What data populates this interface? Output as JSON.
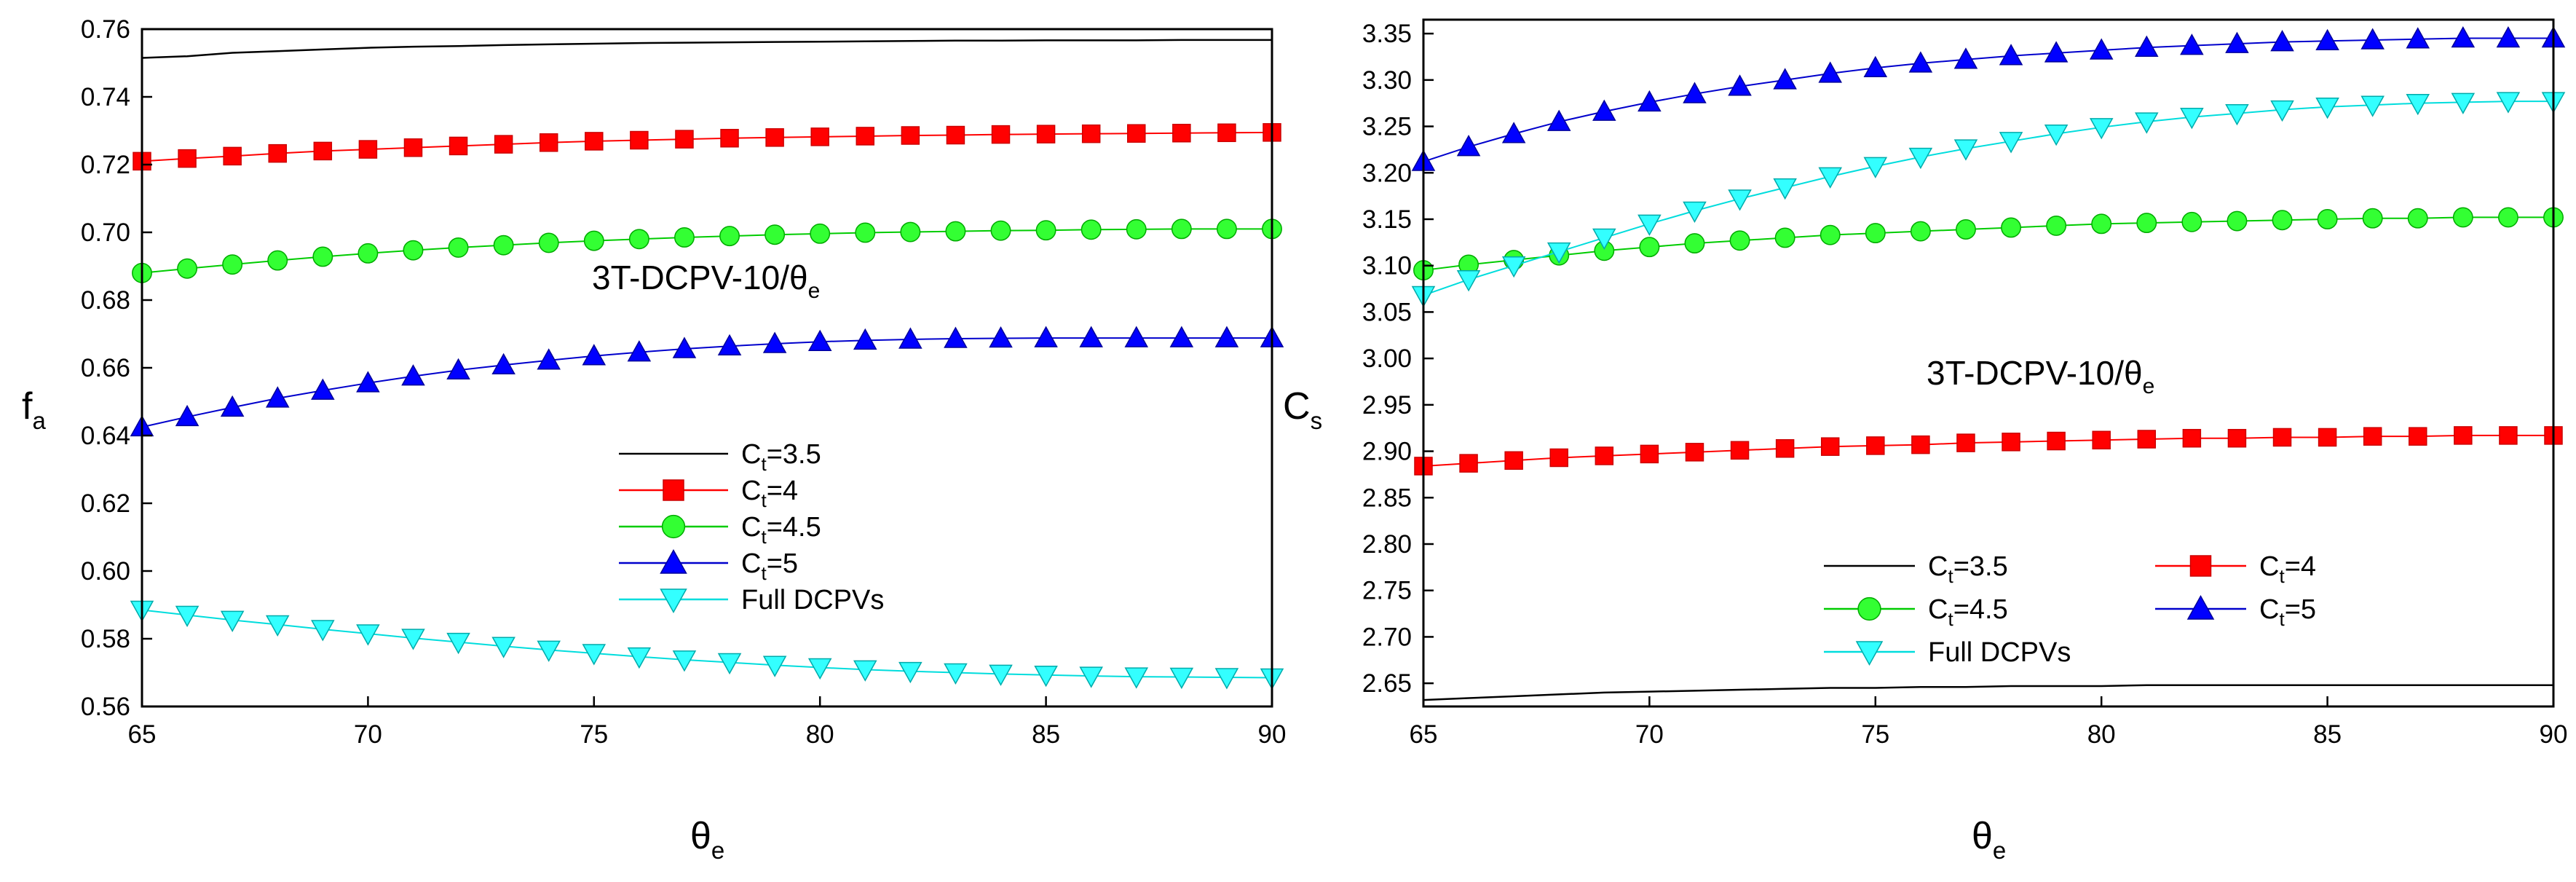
{
  "chart_data": [
    {
      "type": "line",
      "x": [
        65,
        66,
        67,
        68,
        69,
        70,
        71,
        72,
        73,
        74,
        75,
        76,
        77,
        78,
        79,
        80,
        81,
        82,
        83,
        84,
        85,
        86,
        87,
        88,
        89,
        90
      ],
      "xlim": [
        65,
        90
      ],
      "xticks": [
        "65",
        "70",
        "75",
        "80",
        "85",
        "90"
      ],
      "ylim": [
        0.56,
        0.76
      ],
      "yticks": [
        "0.56",
        "0.58",
        "0.60",
        "0.62",
        "0.64",
        "0.66",
        "0.68",
        "0.70",
        "0.72",
        "0.74",
        "0.76"
      ],
      "xlabel": {
        "main": "θ",
        "sub": "e"
      },
      "ylabel": {
        "main": "f",
        "sub": "a"
      },
      "annotation": {
        "main": "3T-DCPV-10/θ",
        "sub": "e"
      },
      "legend_position": "center-right",
      "series": [
        {
          "name": "Ct=3.5",
          "label_main": "C",
          "label_sub": "t",
          "label_rest": "=3.5",
          "color": "#000000",
          "marker": "none",
          "fill": "",
          "edge": "",
          "values": [
            0.7515,
            0.752,
            0.753,
            0.7535,
            0.754,
            0.7545,
            0.7548,
            0.755,
            0.7553,
            0.7555,
            0.7557,
            0.7559,
            0.756,
            0.7561,
            0.7562,
            0.7563,
            0.7564,
            0.7565,
            0.7566,
            0.7566,
            0.7567,
            0.7567,
            0.7567,
            0.7568,
            0.7568,
            0.7568
          ]
        },
        {
          "name": "Ct=4",
          "label_main": "C",
          "label_sub": "t",
          "label_rest": "=4",
          "color": "#ff0000",
          "marker": "square",
          "fill": "#ff0000",
          "edge": "#cc0000",
          "values": [
            0.721,
            0.7218,
            0.7225,
            0.7233,
            0.724,
            0.7245,
            0.725,
            0.7255,
            0.726,
            0.7265,
            0.7269,
            0.7272,
            0.7275,
            0.7278,
            0.728,
            0.7282,
            0.7284,
            0.7286,
            0.7287,
            0.7289,
            0.729,
            0.7291,
            0.7292,
            0.7293,
            0.7294,
            0.7295
          ]
        },
        {
          "name": "Ct=4.5",
          "label_main": "C",
          "label_sub": "t",
          "label_rest": "=4.5",
          "color": "#00cc00",
          "marker": "circle",
          "fill": "#33ff33",
          "edge": "#00aa00",
          "values": [
            0.688,
            0.6893,
            0.6905,
            0.6917,
            0.6928,
            0.6938,
            0.6947,
            0.6955,
            0.6962,
            0.6969,
            0.6975,
            0.698,
            0.6985,
            0.6989,
            0.6993,
            0.6996,
            0.6999,
            0.7001,
            0.7003,
            0.7005,
            0.7006,
            0.7008,
            0.7009,
            0.701,
            0.701,
            0.701
          ]
        },
        {
          "name": "Ct=5",
          "label_main": "C",
          "label_sub": "t",
          "label_rest": "=5",
          "color": "#0000cc",
          "marker": "triangle-up",
          "fill": "#0000ff",
          "edge": "#000099",
          "values": [
            0.6425,
            0.6455,
            0.6483,
            0.651,
            0.6533,
            0.6555,
            0.6575,
            0.6593,
            0.6608,
            0.6622,
            0.6635,
            0.6646,
            0.6656,
            0.6664,
            0.6671,
            0.6677,
            0.6681,
            0.6684,
            0.6686,
            0.6687,
            0.6688,
            0.6688,
            0.6688,
            0.6688,
            0.6688,
            0.6688
          ]
        },
        {
          "name": "Full DCPVs",
          "label_main": "Full DCPVs",
          "label_sub": "",
          "label_rest": "",
          "color": "#00dddd",
          "marker": "triangle-down",
          "fill": "#33ffff",
          "edge": "#00aaaa",
          "values": [
            0.5885,
            0.587,
            0.5855,
            0.5842,
            0.5828,
            0.5815,
            0.5802,
            0.579,
            0.5778,
            0.5767,
            0.5757,
            0.5747,
            0.5738,
            0.573,
            0.5722,
            0.5715,
            0.5709,
            0.5704,
            0.57,
            0.5696,
            0.5693,
            0.569,
            0.5688,
            0.5687,
            0.5686,
            0.5685
          ]
        }
      ]
    },
    {
      "type": "line",
      "x": [
        65,
        66,
        67,
        68,
        69,
        70,
        71,
        72,
        73,
        74,
        75,
        76,
        77,
        78,
        79,
        80,
        81,
        82,
        83,
        84,
        85,
        86,
        87,
        88,
        89,
        90
      ],
      "xlim": [
        65,
        90
      ],
      "xticks": [
        "65",
        "70",
        "75",
        "80",
        "85",
        "90"
      ],
      "ylim": [
        2.625,
        3.365
      ],
      "yticks": [
        "2.65",
        "2.70",
        "2.75",
        "2.80",
        "2.85",
        "2.90",
        "2.95",
        "3.00",
        "3.05",
        "3.10",
        "3.15",
        "3.20",
        "3.25",
        "3.30",
        "3.35"
      ],
      "xlabel": {
        "main": "θ",
        "sub": "e"
      },
      "ylabel": {
        "main": "C",
        "sub": "s"
      },
      "annotation": {
        "main": "3T-DCPV-10/θ",
        "sub": "e"
      },
      "legend_position": "bottom-center",
      "series": [
        {
          "name": "Ct=3.5",
          "label_main": "C",
          "label_sub": "t",
          "label_rest": "=3.5",
          "color": "#000000",
          "marker": "none",
          "fill": "",
          "edge": "",
          "values": [
            2.632,
            2.634,
            2.636,
            2.638,
            2.64,
            2.641,
            2.642,
            2.643,
            2.644,
            2.645,
            2.645,
            2.646,
            2.646,
            2.647,
            2.647,
            2.647,
            2.648,
            2.648,
            2.648,
            2.648,
            2.648,
            2.648,
            2.648,
            2.648,
            2.648,
            2.648
          ]
        },
        {
          "name": "Ct=4",
          "label_main": "C",
          "label_sub": "t",
          "label_rest": "=4",
          "color": "#ff0000",
          "marker": "square",
          "fill": "#ff0000",
          "edge": "#cc0000",
          "values": [
            2.884,
            2.887,
            2.89,
            2.893,
            2.895,
            2.897,
            2.899,
            2.901,
            2.903,
            2.905,
            2.906,
            2.907,
            2.909,
            2.91,
            2.911,
            2.912,
            2.913,
            2.914,
            2.914,
            2.915,
            2.915,
            2.916,
            2.916,
            2.917,
            2.917,
            2.917
          ]
        },
        {
          "name": "Ct=4.5",
          "label_main": "C",
          "label_sub": "t",
          "label_rest": "=4.5",
          "color": "#00cc00",
          "marker": "circle",
          "fill": "#33ff33",
          "edge": "#00aa00",
          "values": [
            3.095,
            3.101,
            3.106,
            3.111,
            3.116,
            3.12,
            3.124,
            3.127,
            3.13,
            3.133,
            3.135,
            3.137,
            3.139,
            3.141,
            3.143,
            3.145,
            3.146,
            3.147,
            3.148,
            3.149,
            3.15,
            3.151,
            3.151,
            3.152,
            3.152,
            3.152
          ]
        },
        {
          "name": "Ct=5",
          "label_main": "C",
          "label_sub": "t",
          "label_rest": "=5",
          "color": "#0000cc",
          "marker": "triangle-up",
          "fill": "#0000ff",
          "edge": "#000099",
          "values": [
            3.212,
            3.228,
            3.242,
            3.255,
            3.266,
            3.276,
            3.285,
            3.293,
            3.3,
            3.307,
            3.313,
            3.318,
            3.322,
            3.326,
            3.329,
            3.332,
            3.335,
            3.337,
            3.339,
            3.341,
            3.342,
            3.343,
            3.344,
            3.345,
            3.345,
            3.345
          ]
        },
        {
          "name": "Full DCPVs",
          "label_main": "Full DCPVs",
          "label_sub": "",
          "label_rest": "",
          "color": "#00dddd",
          "marker": "triangle-down",
          "fill": "#33ffff",
          "edge": "#00aaaa",
          "values": [
            3.068,
            3.085,
            3.1,
            3.115,
            3.13,
            3.145,
            3.159,
            3.172,
            3.184,
            3.196,
            3.207,
            3.217,
            3.226,
            3.234,
            3.242,
            3.249,
            3.255,
            3.26,
            3.264,
            3.268,
            3.271,
            3.273,
            3.275,
            3.276,
            3.277,
            3.277
          ]
        }
      ]
    }
  ]
}
